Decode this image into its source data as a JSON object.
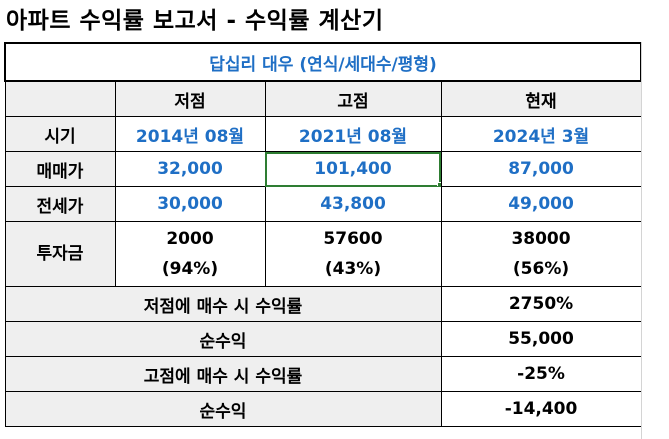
{
  "sheet": {
    "title": "아파트 수익률 보고서 - 수익률 계산기",
    "subtitle": "답십리 대우 (연식/세대수/평형)",
    "headers": [
      "저점",
      "고점",
      "현재"
    ],
    "rows": {
      "period": {
        "label": "시기",
        "values": [
          "2014년 08월",
          "2021년 08월",
          "2024년 3월"
        ]
      },
      "sale_price": {
        "label": "매매가",
        "values": [
          "32,000",
          "101,400",
          "87,000"
        ]
      },
      "jeonse_price": {
        "label": "전세가",
        "values": [
          "30,000",
          "43,800",
          "49,000"
        ]
      },
      "investment": {
        "label": "투자금",
        "values": [
          "2000",
          "57600",
          "38000"
        ],
        "ratios": [
          "(94%)",
          "(43%)",
          "(56%)"
        ]
      }
    },
    "summary": [
      {
        "label": "저점에 매수 시 수익률",
        "value": "2750%"
      },
      {
        "label": "순수익",
        "value": "55,000"
      },
      {
        "label": "고점에 매수 시 수익률",
        "value": "-25%"
      },
      {
        "label": "순수익",
        "value": "-14,400"
      }
    ]
  },
  "colors": {
    "accent_blue": "#1f6fc5",
    "selection_green": "#2e7d32",
    "header_gray": "#efefef"
  }
}
